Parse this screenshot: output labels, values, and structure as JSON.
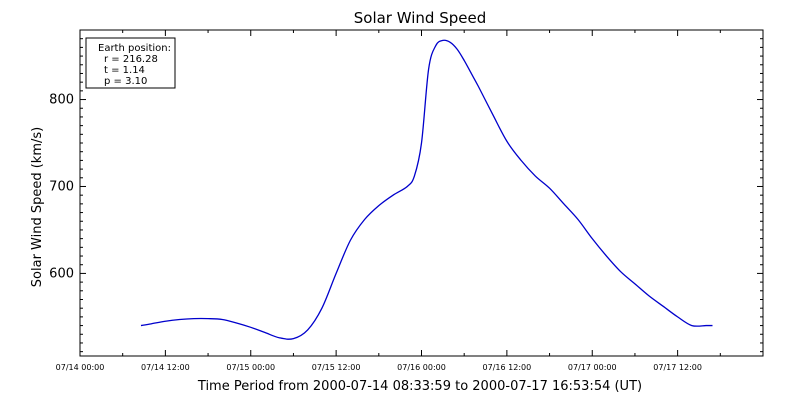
{
  "chart_data": {
    "type": "line",
    "title": "Solar Wind Speed",
    "xlabel": "Time Period from 2000-07-14 08:33:59 to 2000-07-17 16:53:54 (UT)",
    "ylabel": "Solar Wind Speed (km/s)",
    "x_unit": "hours",
    "xlim": [
      0,
      96
    ],
    "ylim": [
      505,
      880
    ],
    "x_tick_labels": [
      {
        "x": 0,
        "label": "07/14 00:00"
      },
      {
        "x": 12,
        "label": "07/14 12:00"
      },
      {
        "x": 24,
        "label": "07/15 00:00"
      },
      {
        "x": 36,
        "label": "07/15 12:00"
      },
      {
        "x": 48,
        "label": "07/16 00:00"
      },
      {
        "x": 60,
        "label": "07/16 12:00"
      },
      {
        "x": 72,
        "label": "07/17 00:00"
      },
      {
        "x": 84,
        "label": "07/17 12:00"
      }
    ],
    "y_ticks": [
      600,
      700,
      800
    ],
    "grid": false,
    "legend": {
      "placement": "top-left",
      "lines": [
        "Earth position:",
        "r = 216.28",
        "t = 1.14",
        "p = 3.10"
      ]
    },
    "series": [
      {
        "color": "#0000cc",
        "x": [
          8.57,
          10,
          12,
          14,
          16,
          18,
          20,
          22,
          24,
          26,
          28,
          30,
          32,
          34,
          36,
          38,
          40,
          42,
          44,
          46,
          47,
          48,
          49,
          50,
          51,
          52,
          53,
          54,
          55,
          56,
          58,
          60,
          62,
          64,
          66,
          68,
          70,
          72,
          74,
          76,
          78,
          80,
          82,
          84,
          86,
          88,
          88.9
        ],
        "y": [
          540,
          542,
          545,
          547,
          548,
          548,
          547,
          543,
          538,
          532,
          526,
          525,
          535,
          560,
          600,
          638,
          662,
          678,
          690,
          700,
          712,
          750,
          835,
          862,
          868,
          866,
          858,
          845,
          830,
          815,
          783,
          752,
          730,
          712,
          698,
          680,
          662,
          640,
          620,
          602,
          588,
          574,
          562,
          550,
          540,
          540,
          540
        ]
      }
    ]
  }
}
